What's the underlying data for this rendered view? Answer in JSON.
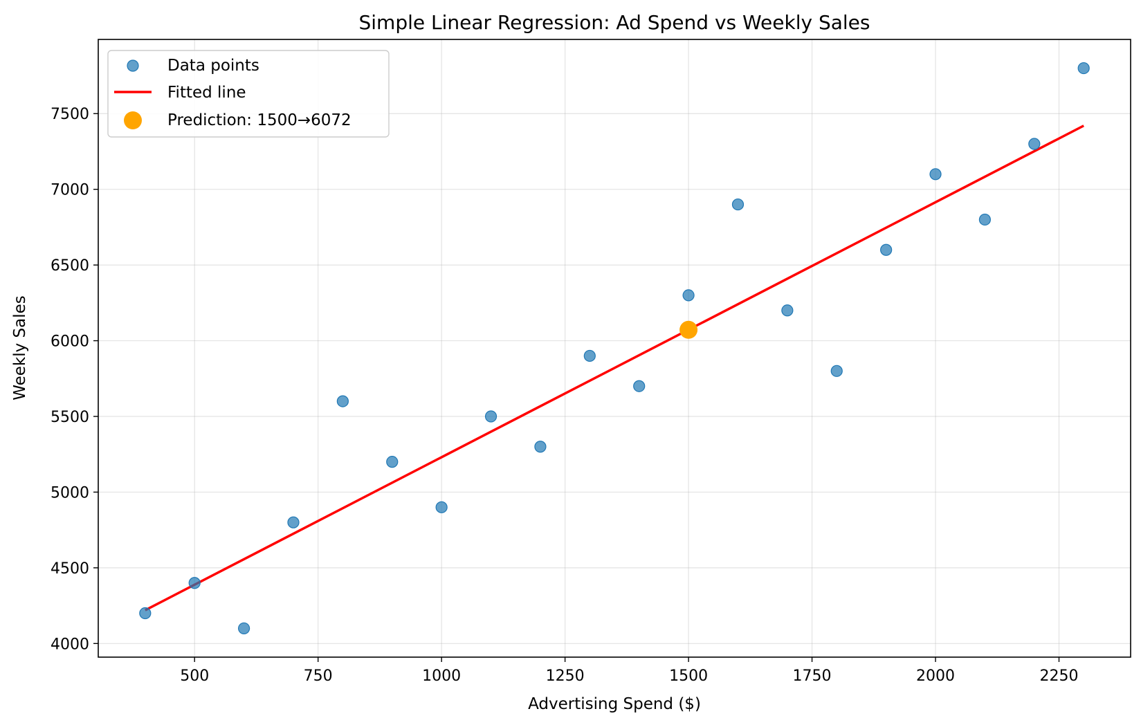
{
  "chart_data": {
    "type": "scatter",
    "title": "Simple Linear Regression: Ad Spend vs Weekly Sales",
    "xlabel": "Advertising Spend ($)",
    "ylabel": "Weekly Sales",
    "xlim": [
      305,
      2395
    ],
    "ylim": [
      3910,
      7990
    ],
    "x_ticks": [
      500,
      750,
      1000,
      1250,
      1500,
      1750,
      2000,
      2250
    ],
    "y_ticks": [
      4000,
      4500,
      5000,
      5500,
      6000,
      6500,
      7000,
      7500
    ],
    "grid": true,
    "legend_position": "top-left",
    "series": [
      {
        "name": "Data points",
        "kind": "scatter",
        "color": "#1f77b4",
        "x": [
          400,
          500,
          600,
          700,
          800,
          900,
          1000,
          1100,
          1200,
          1300,
          1400,
          1500,
          1600,
          1700,
          1800,
          1900,
          2000,
          2100,
          2200,
          2300
        ],
        "y": [
          4200,
          4400,
          4100,
          4800,
          5600,
          5200,
          4900,
          5500,
          5300,
          5900,
          5700,
          6300,
          6900,
          6200,
          5800,
          6600,
          7100,
          6800,
          7300,
          7800
        ]
      },
      {
        "name": "Fitted line",
        "kind": "line",
        "color": "#ff0000",
        "x": [
          400,
          2300
        ],
        "y": [
          4220,
          7420
        ]
      },
      {
        "name": "Prediction: 1500→6072",
        "kind": "point",
        "color": "#ffa500",
        "x": [
          1500
        ],
        "y": [
          6072
        ]
      }
    ]
  }
}
